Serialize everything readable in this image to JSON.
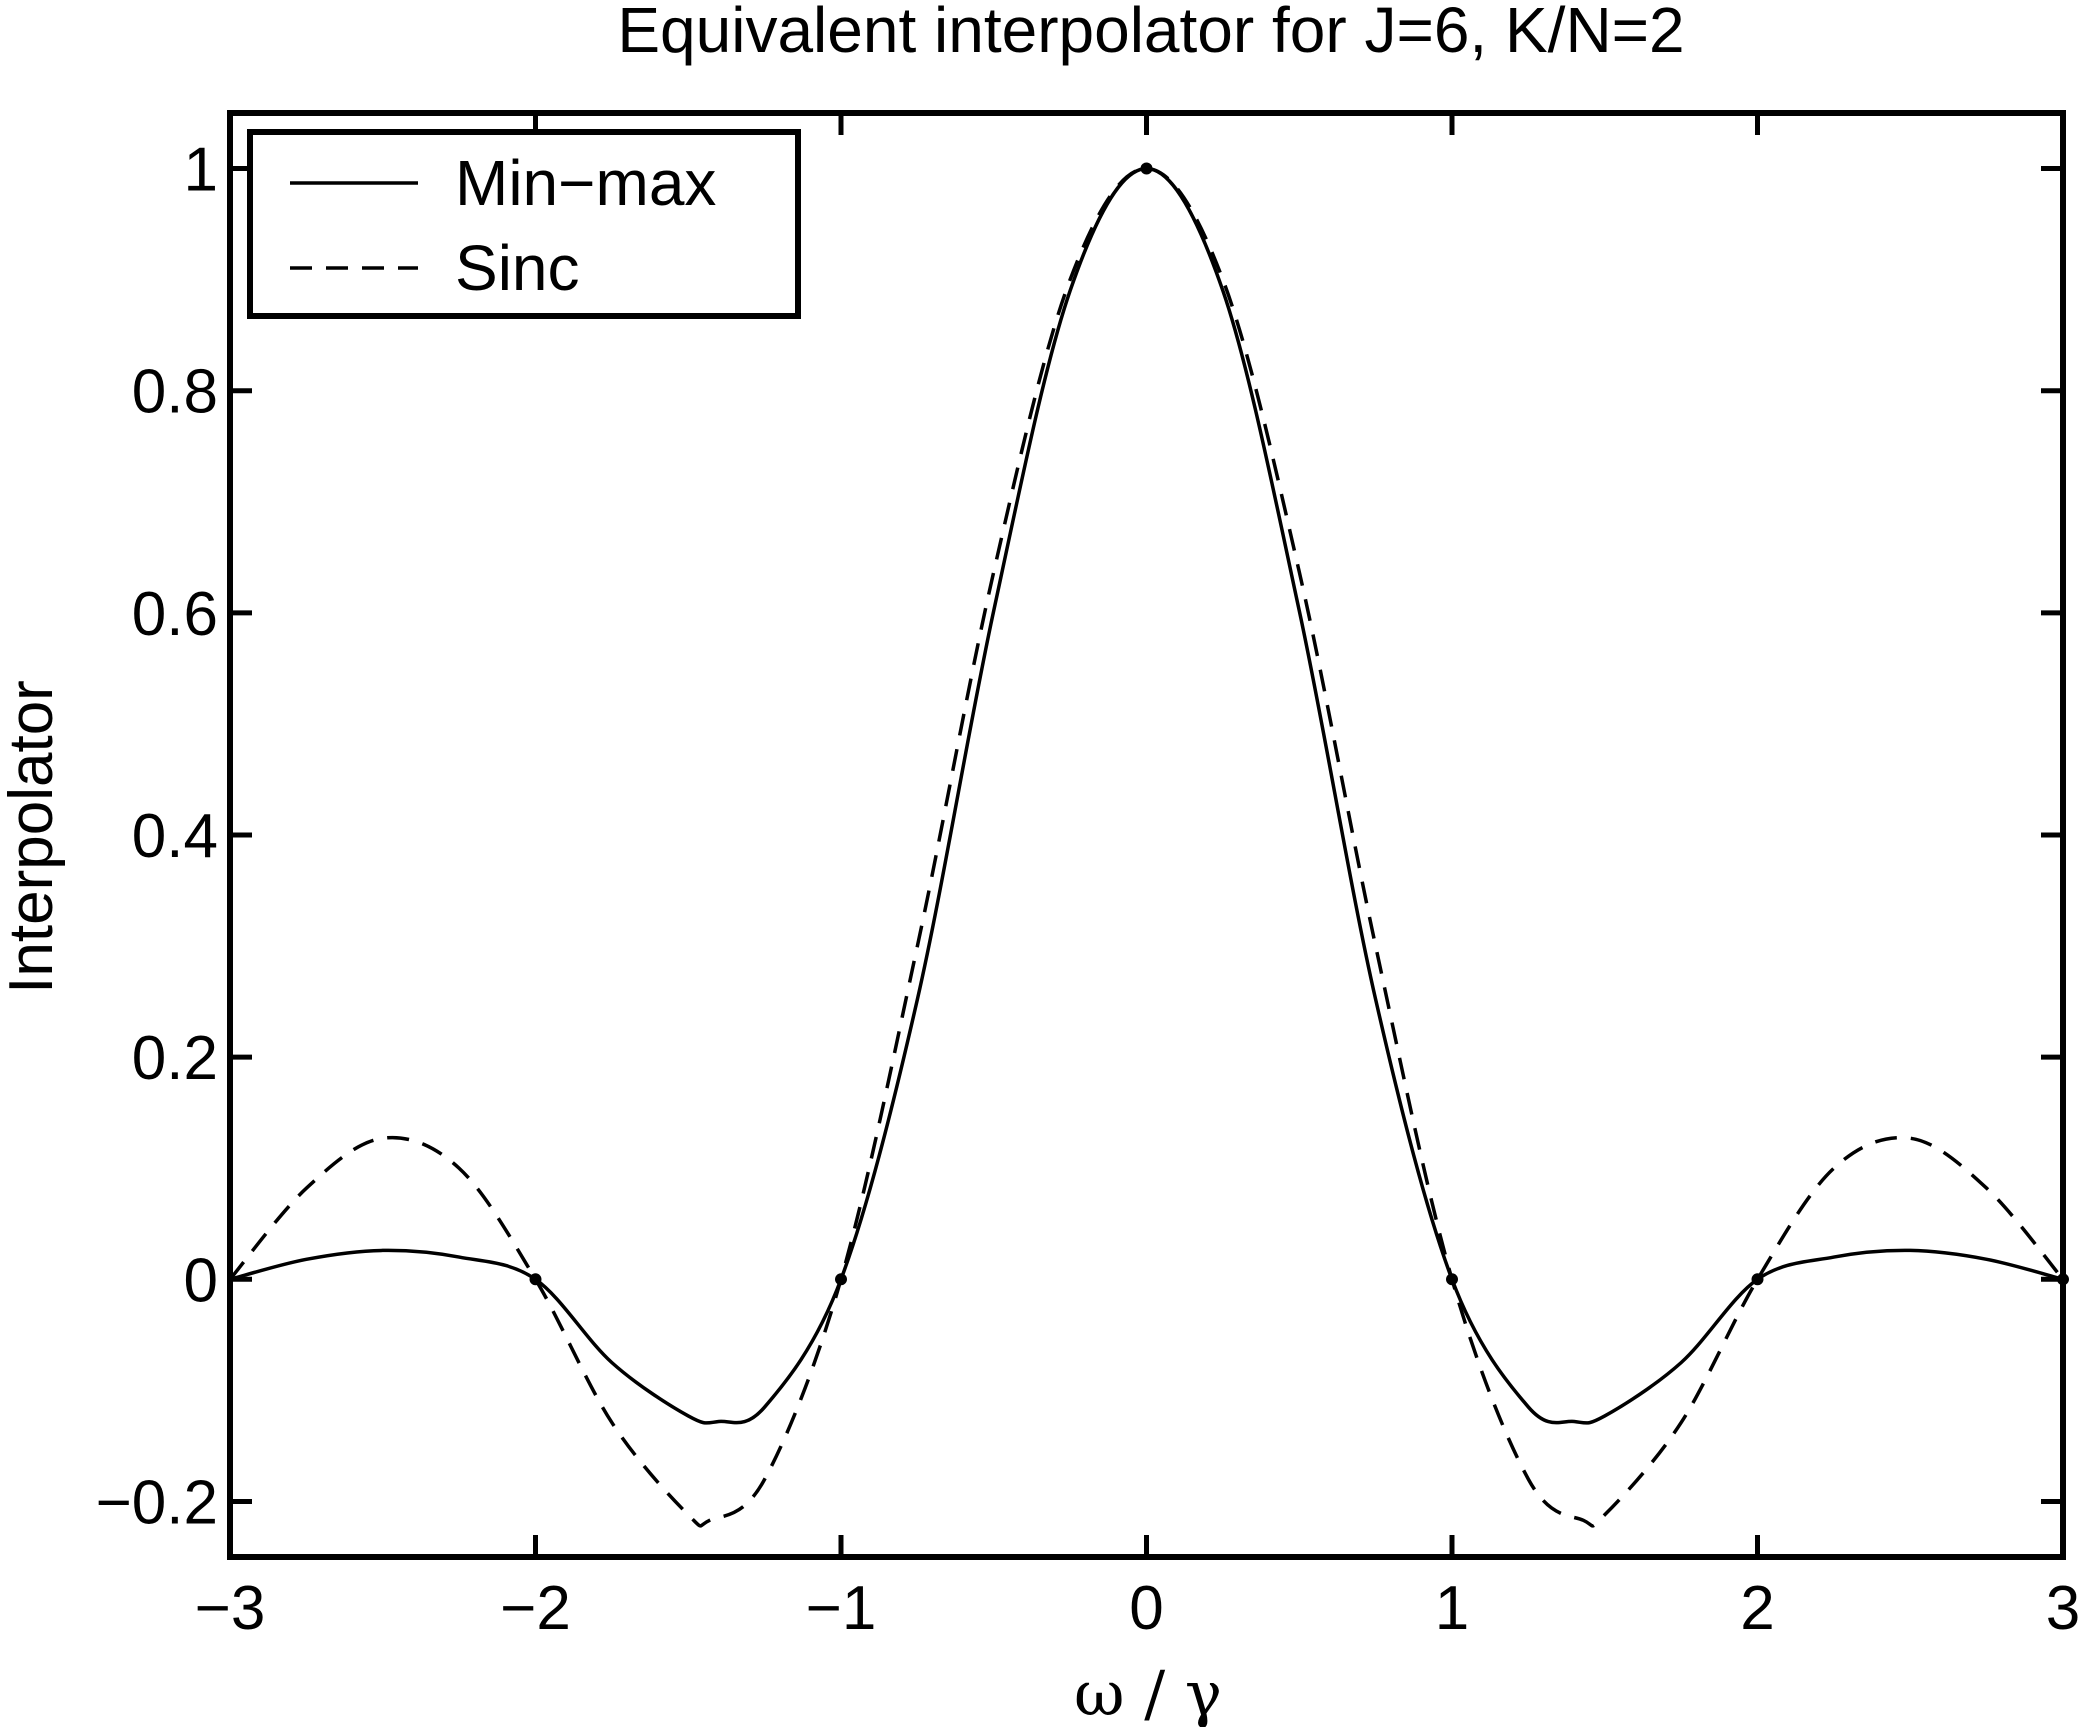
{
  "chart_data": {
    "type": "line",
    "title": "Equivalent interpolator for J=6, K/N=2",
    "xlabel": "ω / γ",
    "ylabel": "Interpolator",
    "xlim": [
      -3,
      3
    ],
    "ylim": [
      -0.25,
      1.05
    ],
    "xticks": [
      -3,
      -2,
      -1,
      0,
      1,
      2,
      3
    ],
    "xtick_labels": [
      "−3",
      "−2",
      "−1",
      "0",
      "1",
      "2",
      "3"
    ],
    "yticks": [
      -0.2,
      0,
      0.2,
      0.4,
      0.6,
      0.8,
      1
    ],
    "ytick_labels": [
      "−0.2",
      "0",
      "0.2",
      "0.4",
      "0.6",
      "0.8",
      "1"
    ],
    "grid": false,
    "legend_position": "top-left",
    "series": [
      {
        "name": "Min−max",
        "style": "solid",
        "color": "#000000",
        "x": [
          -3,
          -2.75,
          -2.5,
          -2.25,
          -2,
          -1.75,
          -1.5,
          -1.4,
          -1.25,
          -1,
          -0.75,
          -0.5,
          -0.25,
          0,
          0.25,
          0.5,
          0.75,
          1,
          1.25,
          1.4,
          1.5,
          1.75,
          2,
          2.25,
          2.5,
          2.75,
          3
        ],
        "y": [
          0,
          0.018,
          0.026,
          0.02,
          0,
          -0.075,
          -0.123,
          -0.128,
          -0.115,
          0,
          0.252,
          0.602,
          0.89,
          1,
          0.89,
          0.602,
          0.252,
          0,
          -0.115,
          -0.128,
          -0.123,
          -0.075,
          0,
          0.02,
          0.026,
          0.018,
          0
        ]
      },
      {
        "name": "Sinc",
        "style": "dashed",
        "color": "#000000",
        "x": [
          -3,
          -2.75,
          -2.5,
          -2.25,
          -2,
          -1.75,
          -1.5,
          -1.43,
          -1.25,
          -1,
          -0.75,
          -0.5,
          -0.25,
          0,
          0.25,
          0.5,
          0.75,
          1,
          1.25,
          1.43,
          1.5,
          1.75,
          2,
          2.25,
          2.5,
          2.75,
          3
        ],
        "y": [
          0,
          0.082,
          0.127,
          0.1,
          0,
          -0.129,
          -0.212,
          -0.217,
          -0.18,
          0,
          0.3,
          0.637,
          0.9,
          1,
          0.9,
          0.637,
          0.3,
          0,
          -0.18,
          -0.217,
          -0.212,
          -0.129,
          0,
          0.1,
          0.127,
          0.082,
          0
        ]
      }
    ],
    "markers": {
      "x": [
        -2,
        -1,
        0,
        1,
        2,
        3
      ],
      "y": [
        0,
        0,
        1,
        0,
        0,
        0
      ]
    }
  }
}
